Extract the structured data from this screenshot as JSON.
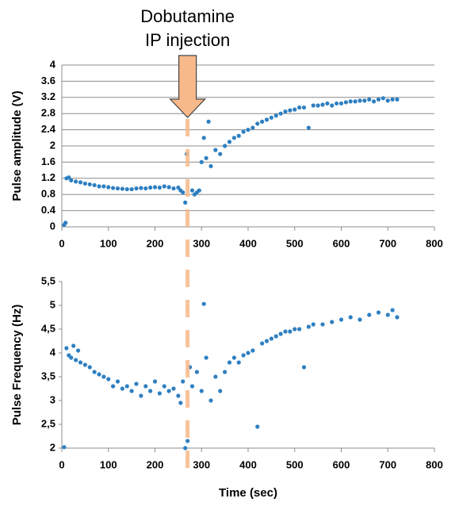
{
  "chart_data": [
    {
      "type": "scatter",
      "ylabel": "Pulse amplitude (V)",
      "color": "#2e7fc1",
      "grid": true,
      "annotation": {
        "text": [
          "Dobutamine",
          "IP injection"
        ],
        "x": 270,
        "color": "#f7b98a"
      },
      "xlim": [
        0,
        800
      ],
      "xticks": [
        0,
        100,
        200,
        300,
        400,
        500,
        600,
        700,
        800
      ],
      "ylim": [
        0,
        4
      ],
      "yticks": [
        0,
        0.4,
        0.8,
        1.2,
        1.6,
        2,
        2.4,
        2.8,
        3.2,
        3.6,
        4
      ],
      "x": [
        5,
        8,
        10,
        15,
        20,
        30,
        40,
        50,
        60,
        70,
        80,
        90,
        100,
        110,
        120,
        130,
        140,
        150,
        160,
        170,
        180,
        190,
        200,
        210,
        220,
        230,
        240,
        250,
        255,
        260,
        265,
        268,
        272,
        275,
        280,
        285,
        290,
        295,
        300,
        305,
        310,
        315,
        320,
        330,
        340,
        350,
        360,
        370,
        380,
        390,
        400,
        410,
        420,
        430,
        440,
        450,
        460,
        470,
        480,
        490,
        500,
        510,
        520,
        530,
        540,
        550,
        560,
        570,
        580,
        590,
        600,
        610,
        620,
        630,
        640,
        650,
        660,
        670,
        680,
        690,
        700,
        710,
        720
      ],
      "values": [
        0.05,
        0.1,
        1.2,
        1.22,
        1.15,
        1.12,
        1.1,
        1.07,
        1.05,
        1.03,
        1.0,
        1.0,
        0.98,
        0.96,
        0.95,
        0.94,
        0.93,
        0.93,
        0.95,
        0.96,
        0.95,
        0.97,
        0.98,
        0.97,
        1.0,
        0.98,
        0.95,
        0.97,
        0.9,
        0.85,
        0.6,
        1.8,
        3.95,
        3.0,
        0.9,
        0.8,
        0.85,
        0.9,
        1.6,
        2.2,
        1.7,
        2.6,
        1.5,
        1.9,
        1.8,
        2.0,
        2.1,
        2.2,
        2.25,
        2.35,
        2.4,
        2.45,
        2.55,
        2.6,
        2.65,
        2.7,
        2.75,
        2.8,
        2.85,
        2.88,
        2.9,
        2.95,
        2.95,
        2.45,
        3.0,
        3.0,
        3.02,
        3.05,
        3.0,
        3.05,
        3.05,
        3.08,
        3.1,
        3.1,
        3.12,
        3.12,
        3.15,
        3.1,
        3.15,
        3.18,
        3.12,
        3.15,
        3.15
      ]
    },
    {
      "type": "scatter",
      "ylabel": "Pulse Frequency (Hz)",
      "xlabel": "Time (sec)",
      "color": "#2e7fc1",
      "grid": false,
      "xlim": [
        0,
        800
      ],
      "xticks": [
        0,
        100,
        200,
        300,
        400,
        500,
        600,
        700,
        800
      ],
      "ylim": [
        2,
        5.5
      ],
      "yticks": [
        2,
        {
          "value": 2.5,
          "label": "2,5"
        },
        3,
        {
          "value": 3.5,
          "label": "3,5"
        },
        4,
        {
          "value": 4.5,
          "label": "4,5"
        },
        5,
        {
          "value": 5.5,
          "label": "5,5"
        }
      ],
      "x": [
        5,
        10,
        15,
        20,
        25,
        30,
        35,
        40,
        50,
        60,
        70,
        80,
        90,
        100,
        110,
        120,
        130,
        140,
        150,
        160,
        170,
        180,
        190,
        200,
        210,
        220,
        230,
        240,
        250,
        255,
        260,
        265,
        270,
        275,
        280,
        290,
        300,
        305,
        310,
        320,
        330,
        340,
        350,
        360,
        370,
        380,
        390,
        400,
        410,
        420,
        430,
        440,
        450,
        460,
        470,
        480,
        490,
        500,
        510,
        520,
        530,
        540,
        560,
        580,
        600,
        620,
        640,
        660,
        680,
        700,
        710,
        720
      ],
      "values": [
        2.02,
        4.1,
        3.95,
        3.9,
        4.15,
        3.85,
        4.05,
        3.8,
        3.75,
        3.7,
        3.6,
        3.55,
        3.5,
        3.45,
        3.3,
        3.4,
        3.25,
        3.3,
        3.2,
        3.35,
        3.1,
        3.3,
        3.2,
        3.4,
        3.15,
        3.3,
        3.2,
        3.25,
        3.1,
        2.95,
        3.4,
        2.0,
        2.15,
        3.7,
        3.3,
        3.6,
        3.2,
        5.03,
        3.9,
        3.0,
        3.5,
        3.2,
        3.6,
        3.8,
        3.9,
        3.8,
        3.95,
        4.0,
        4.05,
        2.45,
        4.2,
        4.25,
        4.3,
        4.35,
        4.4,
        4.45,
        4.45,
        4.5,
        4.5,
        3.7,
        4.55,
        4.6,
        4.6,
        4.65,
        4.7,
        4.75,
        4.7,
        4.8,
        4.85,
        4.8,
        4.9,
        4.75
      ]
    }
  ]
}
